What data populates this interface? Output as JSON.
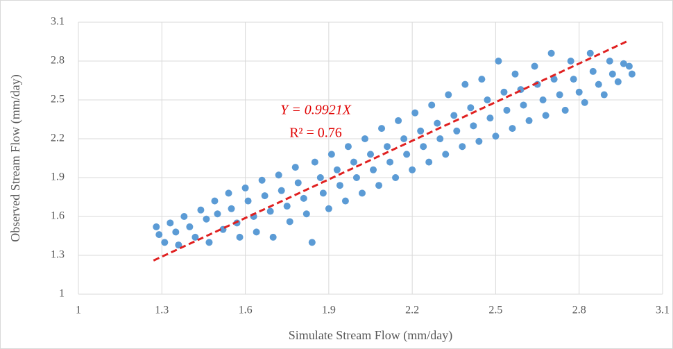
{
  "chart_data": {
    "type": "scatter",
    "x_label": "Simulate Stream Flow (mm/day)",
    "y_label": "Observed Stream Flow (mm/day)",
    "annotations": [
      "Y = 0.9921X",
      "R² = 0.76"
    ],
    "xlim": [
      1,
      3.1
    ],
    "ylim": [
      1,
      3.1
    ],
    "xticks": [
      1,
      1.3,
      1.6,
      1.9,
      2.2,
      2.5,
      2.8,
      3.1
    ],
    "yticks": [
      1,
      1.3,
      1.6,
      1.9,
      2.2,
      2.5,
      2.8,
      3.1
    ],
    "grid": true,
    "series": [
      {
        "color": "#5b9bd5",
        "x": [
          1.28,
          1.29,
          1.31,
          1.33,
          1.35,
          1.36,
          1.38,
          1.4,
          1.42,
          1.44,
          1.46,
          1.47,
          1.49,
          1.5,
          1.52,
          1.54,
          1.55,
          1.57,
          1.58,
          1.6,
          1.61,
          1.63,
          1.64,
          1.66,
          1.67,
          1.69,
          1.7,
          1.72,
          1.73,
          1.75,
          1.76,
          1.78,
          1.79,
          1.81,
          1.82,
          1.84,
          1.85,
          1.87,
          1.88,
          1.9,
          1.91,
          1.93,
          1.94,
          1.96,
          1.97,
          1.99,
          2.0,
          2.02,
          2.03,
          2.05,
          2.06,
          2.08,
          2.09,
          2.11,
          2.12,
          2.14,
          2.15,
          2.17,
          2.18,
          2.2,
          2.21,
          2.23,
          2.24,
          2.26,
          2.27,
          2.29,
          2.3,
          2.32,
          2.33,
          2.35,
          2.36,
          2.38,
          2.39,
          2.41,
          2.42,
          2.44,
          2.45,
          2.47,
          2.48,
          2.5,
          2.51,
          2.53,
          2.54,
          2.56,
          2.57,
          2.59,
          2.6,
          2.62,
          2.64,
          2.65,
          2.67,
          2.68,
          2.7,
          2.71,
          2.73,
          2.75,
          2.77,
          2.78,
          2.8,
          2.82,
          2.84,
          2.85,
          2.87,
          2.89,
          2.91,
          2.92,
          2.94,
          2.96,
          2.98,
          2.99
        ],
        "values": [
          1.52,
          1.46,
          1.4,
          1.55,
          1.48,
          1.38,
          1.6,
          1.52,
          1.44,
          1.65,
          1.58,
          1.4,
          1.72,
          1.62,
          1.5,
          1.78,
          1.66,
          1.55,
          1.44,
          1.82,
          1.72,
          1.6,
          1.48,
          1.88,
          1.76,
          1.64,
          1.44,
          1.92,
          1.8,
          1.68,
          1.56,
          1.98,
          1.86,
          1.74,
          1.62,
          1.4,
          2.02,
          1.9,
          1.78,
          1.66,
          2.08,
          1.96,
          1.84,
          1.72,
          2.14,
          2.02,
          1.9,
          1.78,
          2.2,
          2.08,
          1.96,
          1.84,
          2.28,
          2.14,
          2.02,
          1.9,
          2.34,
          2.2,
          2.08,
          1.96,
          2.4,
          2.26,
          2.14,
          2.02,
          2.46,
          2.32,
          2.2,
          2.08,
          2.54,
          2.38,
          2.26,
          2.14,
          2.62,
          2.44,
          2.3,
          2.18,
          2.66,
          2.5,
          2.36,
          2.22,
          2.8,
          2.56,
          2.42,
          2.28,
          2.7,
          2.58,
          2.46,
          2.34,
          2.76,
          2.62,
          2.5,
          2.38,
          2.86,
          2.66,
          2.54,
          2.42,
          2.8,
          2.66,
          2.56,
          2.48,
          2.86,
          2.72,
          2.62,
          2.54,
          2.8,
          2.7,
          2.64,
          2.78,
          2.76,
          2.7
        ]
      }
    ],
    "trendline": {
      "color": "#e02020",
      "x": [
        1.27,
        2.98
      ],
      "y": [
        1.26,
        2.96
      ]
    }
  }
}
